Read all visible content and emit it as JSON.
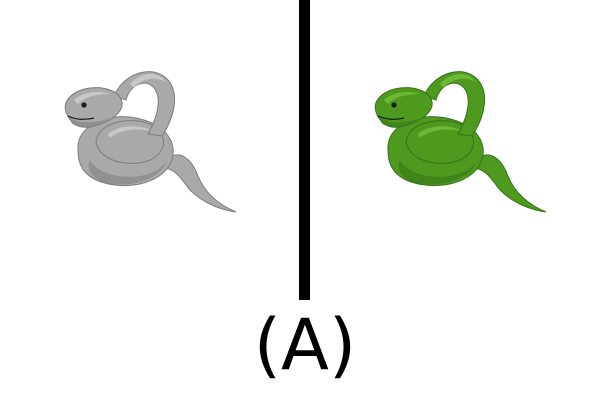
{
  "figure": {
    "label": "(A)",
    "panels": [
      {
        "icon": "snake-icon",
        "render": "grayscale",
        "color": "#a9a9a9",
        "shade": "#7d7d7d",
        "highlight": "#d6d6d6"
      },
      {
        "icon": "snake-icon",
        "render": "colored",
        "color": "#4e9a1e",
        "shade": "#35721a",
        "highlight": "#7cc443"
      }
    ],
    "divider_color": "#000000"
  }
}
